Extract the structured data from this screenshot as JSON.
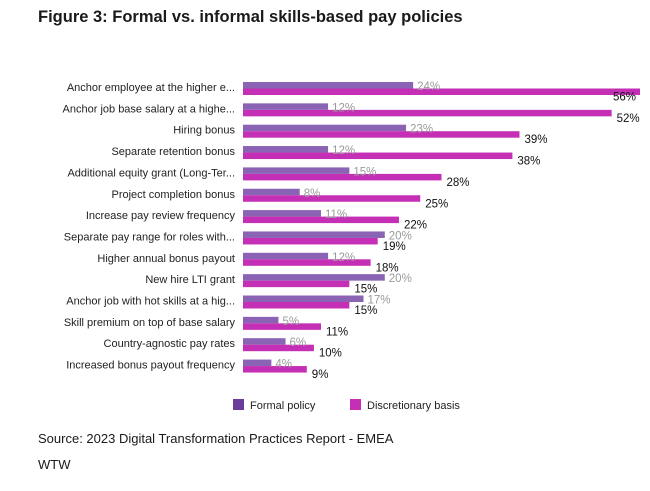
{
  "title": "Figure 3: Formal vs. informal skills-based pay policies",
  "source": "Source: 2023 Digital Transformation Practices Report - EMEA",
  "organization": "WTW",
  "chart_data": {
    "type": "bar",
    "orientation": "horizontal",
    "title": "Figure 3: Formal vs. informal skills-based pay policies",
    "xlim": [
      0,
      56
    ],
    "grid": false,
    "legend_position": "bottom",
    "value_suffix": "%",
    "categories": [
      "Anchor employee at the higher e...",
      "Anchor job base salary at a highe...",
      "Hiring bonus",
      "Separate retention bonus",
      "Additional equity grant (Long-Ter...",
      "Project completion bonus",
      "Increase pay review frequency",
      "Separate pay range for roles with...",
      "Higher annual bonus payout",
      "New hire LTI grant",
      "Anchor job with hot skills at a hig...",
      "Skill premium on top of base salary",
      "Country-agnostic pay rates",
      "Increased bonus payout frequency"
    ],
    "series": [
      {
        "name": "Formal policy",
        "color": "#8b63b5",
        "legend_color": "#6a3d9a",
        "values": [
          24,
          12,
          23,
          12,
          15,
          8,
          11,
          20,
          12,
          20,
          17,
          5,
          6,
          4
        ]
      },
      {
        "name": "Discretionary basis",
        "color": "#c42fb5",
        "legend_color": "#c42fb5",
        "values": [
          56,
          52,
          39,
          38,
          28,
          25,
          22,
          19,
          18,
          15,
          15,
          11,
          10,
          9
        ]
      }
    ]
  }
}
